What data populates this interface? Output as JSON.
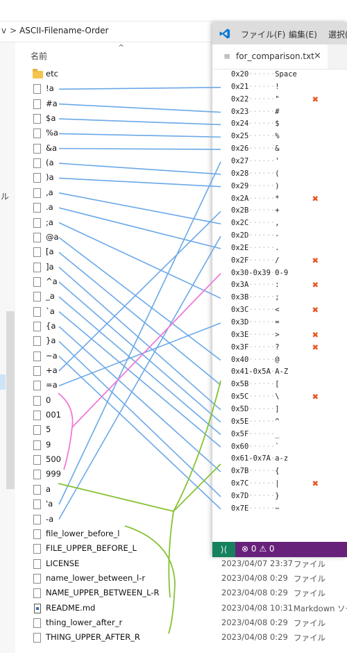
{
  "explorer": {
    "breadcrumb": [
      "v",
      ">",
      "ASCII-Filename-Order"
    ],
    "nav_fragment": "ル",
    "column_header": "名前",
    "files": [
      {
        "name": "etc",
        "kind": "folder",
        "date": "",
        "type": ""
      },
      {
        "name": "!a",
        "kind": "file",
        "date": "",
        "type": ""
      },
      {
        "name": "#a",
        "kind": "file",
        "date": "",
        "type": ""
      },
      {
        "name": "$a",
        "kind": "file",
        "date": "",
        "type": ""
      },
      {
        "name": "%a",
        "kind": "file",
        "date": "",
        "type": ""
      },
      {
        "name": "&a",
        "kind": "file",
        "date": "",
        "type": ""
      },
      {
        "name": "(a",
        "kind": "file",
        "date": "",
        "type": ""
      },
      {
        "name": ")a",
        "kind": "file",
        "date": "",
        "type": ""
      },
      {
        "name": ",a",
        "kind": "file",
        "date": "",
        "type": ""
      },
      {
        "name": ".a",
        "kind": "file",
        "date": "",
        "type": ""
      },
      {
        "name": ";a",
        "kind": "file",
        "date": "",
        "type": ""
      },
      {
        "name": "@a",
        "kind": "file",
        "date": "",
        "type": ""
      },
      {
        "name": "[a",
        "kind": "file",
        "date": "",
        "type": ""
      },
      {
        "name": "]a",
        "kind": "file",
        "date": "",
        "type": ""
      },
      {
        "name": "^a",
        "kind": "file",
        "date": "",
        "type": ""
      },
      {
        "name": "_a",
        "kind": "file",
        "date": "",
        "type": ""
      },
      {
        "name": "`a",
        "kind": "file",
        "date": "",
        "type": ""
      },
      {
        "name": "{a",
        "kind": "file",
        "date": "",
        "type": ""
      },
      {
        "name": "}a",
        "kind": "file",
        "date": "",
        "type": ""
      },
      {
        "name": "~a",
        "kind": "file",
        "date": "",
        "type": ""
      },
      {
        "name": "+a",
        "kind": "file",
        "date": "",
        "type": ""
      },
      {
        "name": "=a",
        "kind": "file",
        "date": "",
        "type": ""
      },
      {
        "name": "0",
        "kind": "file",
        "date": "",
        "type": ""
      },
      {
        "name": "001",
        "kind": "file",
        "date": "",
        "type": ""
      },
      {
        "name": "5",
        "kind": "file",
        "date": "",
        "type": ""
      },
      {
        "name": "9",
        "kind": "file",
        "date": "",
        "type": ""
      },
      {
        "name": "500",
        "kind": "file",
        "date": "",
        "type": ""
      },
      {
        "name": "999",
        "kind": "file",
        "date": "",
        "type": ""
      },
      {
        "name": "a",
        "kind": "file",
        "date": "",
        "type": ""
      },
      {
        "name": "'a",
        "kind": "file",
        "date": "",
        "type": ""
      },
      {
        "name": "-a",
        "kind": "file",
        "date": "",
        "type": ""
      },
      {
        "name": "file_lower_before_l",
        "kind": "file",
        "date": "",
        "type": ""
      },
      {
        "name": "FILE_UPPER_BEFORE_L",
        "kind": "file",
        "date": "",
        "type": ""
      },
      {
        "name": "LICENSE",
        "kind": "file",
        "date": "2023/04/07 23:37",
        "type": "ファイル"
      },
      {
        "name": "name_lower_between_l-r",
        "kind": "file",
        "date": "2023/04/08 0:29",
        "type": "ファイル"
      },
      {
        "name": "NAME_UPPER_BETWEEN_L-R",
        "kind": "file",
        "date": "2023/04/08 0:29",
        "type": "ファイル"
      },
      {
        "name": "README.md",
        "kind": "md",
        "date": "2023/04/08 10:31",
        "type": "Markdown ソー"
      },
      {
        "name": "thing_lower_after_r",
        "kind": "file",
        "date": "2023/04/08 0:29",
        "type": "ファイル"
      },
      {
        "name": "THING_UPPER_AFTER_R",
        "kind": "file",
        "date": "2023/04/08 0:29",
        "type": "ファイル"
      }
    ]
  },
  "vscode": {
    "menu": [
      "ファイル(F)",
      "編集(E)",
      "選択("
    ],
    "tab_label": "for_comparison.txt",
    "tab_close": "×",
    "lines": [
      {
        "code": "0x20",
        "dots": "······",
        "val": "Space",
        "mark": false
      },
      {
        "code": "0x21",
        "dots": "······",
        "val": "!",
        "mark": false
      },
      {
        "code": "0x22",
        "dots": "······",
        "val": "\"",
        "mark": true
      },
      {
        "code": "0x23",
        "dots": "······",
        "val": "#",
        "mark": false
      },
      {
        "code": "0x24",
        "dots": "······",
        "val": "$",
        "mark": false
      },
      {
        "code": "0x25",
        "dots": "······",
        "val": "%",
        "mark": false
      },
      {
        "code": "0x26",
        "dots": "······",
        "val": "&",
        "mark": false
      },
      {
        "code": "0x27",
        "dots": "······",
        "val": "'",
        "mark": false
      },
      {
        "code": "0x28",
        "dots": "······",
        "val": "(",
        "mark": false
      },
      {
        "code": "0x29",
        "dots": "······",
        "val": ")",
        "mark": false
      },
      {
        "code": "0x2A",
        "dots": "······",
        "val": "*",
        "mark": true
      },
      {
        "code": "0x2B",
        "dots": "······",
        "val": "+",
        "mark": false
      },
      {
        "code": "0x2C",
        "dots": "······",
        "val": ",",
        "mark": false
      },
      {
        "code": "0x2D",
        "dots": "······",
        "val": "-",
        "mark": false
      },
      {
        "code": "0x2E",
        "dots": "······",
        "val": ".",
        "mark": false
      },
      {
        "code": "0x2F",
        "dots": "······",
        "val": "/",
        "mark": true
      },
      {
        "code": "0x30-0x39",
        "dots": "·",
        "val": "0-9",
        "mark": false
      },
      {
        "code": "0x3A",
        "dots": "······",
        "val": ":",
        "mark": true
      },
      {
        "code": "0x3B",
        "dots": "······",
        "val": ";",
        "mark": false
      },
      {
        "code": "0x3C",
        "dots": "······",
        "val": "<",
        "mark": true
      },
      {
        "code": "0x3D",
        "dots": "······",
        "val": "=",
        "mark": false
      },
      {
        "code": "0x3E",
        "dots": "······",
        "val": ">",
        "mark": true
      },
      {
        "code": "0x3F",
        "dots": "······",
        "val": "?",
        "mark": true
      },
      {
        "code": "0x40",
        "dots": "······",
        "val": "@",
        "mark": false
      },
      {
        "code": "0x41-0x5A",
        "dots": "·",
        "val": "A-Z",
        "mark": false
      },
      {
        "code": "0x5B",
        "dots": "······",
        "val": "[",
        "mark": false
      },
      {
        "code": "0x5C",
        "dots": "······",
        "val": "\\",
        "mark": true
      },
      {
        "code": "0x5D",
        "dots": "······",
        "val": "]",
        "mark": false
      },
      {
        "code": "0x5E",
        "dots": "······",
        "val": "^",
        "mark": false
      },
      {
        "code": "0x5F",
        "dots": "······",
        "val": "_",
        "mark": false
      },
      {
        "code": "0x60",
        "dots": "······",
        "val": "`",
        "mark": false
      },
      {
        "code": "0x61-0x7A",
        "dots": "·",
        "val": "a-z",
        "mark": false
      },
      {
        "code": "0x7B",
        "dots": "······",
        "val": "{",
        "mark": false
      },
      {
        "code": "0x7C",
        "dots": "······",
        "val": "|",
        "mark": true
      },
      {
        "code": "0x7D",
        "dots": "······",
        "val": "}",
        "mark": false
      },
      {
        "code": "0x7E",
        "dots": "······",
        "val": "~",
        "mark": false
      }
    ],
    "status_problems": "⊗ 0 ⚠ 0"
  },
  "colors": {
    "blue_line": "#6aa8e8",
    "pink_line": "#f07ad8",
    "green_line": "#86c232",
    "x_mark": "#e8541f",
    "status_bar": "#68217a",
    "remote": "#16825d"
  },
  "icons": [
    "folder-icon",
    "file-icon",
    "markdown-file-icon",
    "vscode-logo-icon",
    "text-file-icon",
    "close-icon",
    "remote-icon",
    "error-icon",
    "warning-icon",
    "sort-up-icon"
  ]
}
